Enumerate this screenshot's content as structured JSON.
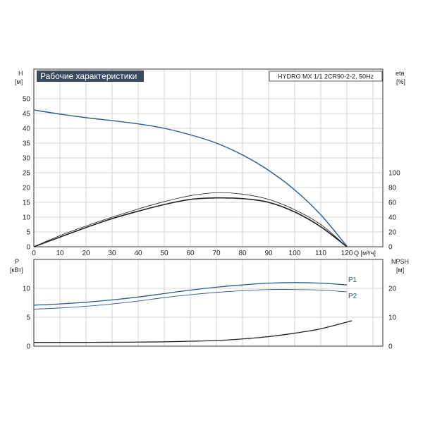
{
  "colors": {
    "grid": "#c8c8c8",
    "axis": "#333333",
    "head": "#2a5a8c",
    "curve": "#222222",
    "title_bg": "#3a4a5c",
    "title_fg": "#ffffff"
  },
  "chart_data": [
    {
      "type": "line",
      "title": "Рабочие характеристики",
      "subtitle": "HYDRO MX 1/1 2CR90-2-2, 50Hz",
      "xlabel": "Q [м³/ч]",
      "ylabel_left": "H",
      "ylabel_left_unit": "[м]",
      "ylabel_right": "eta",
      "ylabel_right_unit": "[%]",
      "xlim": [
        0,
        120
      ],
      "ylim": [
        0,
        50
      ],
      "y2lim": [
        0,
        100
      ],
      "grid": true,
      "x_ticks": [
        0,
        10,
        20,
        30,
        40,
        50,
        60,
        70,
        80,
        90,
        100,
        110,
        120
      ],
      "y_ticks": [
        0,
        5,
        10,
        15,
        20,
        25,
        30,
        35,
        40,
        45,
        50
      ],
      "y2_ticks": [
        0,
        20,
        40,
        60,
        80,
        100
      ],
      "series": [
        {
          "role": "head",
          "axis": "left",
          "x": [
            0,
            10,
            20,
            30,
            40,
            50,
            60,
            70,
            80,
            90,
            100,
            110,
            120
          ],
          "y": [
            46.2,
            44.8,
            43.6,
            42.6,
            41.5,
            40.0,
            37.8,
            35.0,
            31.0,
            25.8,
            19.2,
            10.8,
            0.2
          ]
        },
        {
          "role": "eta_1",
          "axis": "right",
          "x": [
            0,
            10,
            20,
            30,
            40,
            50,
            60,
            70,
            80,
            90,
            100,
            110,
            120
          ],
          "y": [
            0,
            15,
            28,
            40,
            51,
            61,
            69,
            73,
            71,
            64,
            50,
            30,
            0
          ]
        },
        {
          "role": "eta_2",
          "axis": "right",
          "x": [
            0,
            10,
            20,
            30,
            40,
            50,
            60,
            70,
            80,
            90,
            100,
            110,
            120
          ],
          "y": [
            0,
            13,
            26,
            38,
            48,
            57,
            64,
            66,
            65,
            60,
            47,
            27,
            0
          ]
        }
      ]
    },
    {
      "type": "line",
      "xlabel": "",
      "ylabel_left": "P",
      "ylabel_left_unit": "[кВт]",
      "ylabel_right": "NPSH",
      "ylabel_right_unit": "[м]",
      "xlim": [
        0,
        120
      ],
      "ylim": [
        0,
        15
      ],
      "y2lim": [
        0,
        30
      ],
      "grid": true,
      "y_ticks": [
        0,
        5,
        10
      ],
      "y2_ticks": [
        0,
        10,
        20
      ],
      "series": [
        {
          "name": "P1",
          "axis": "left",
          "x": [
            0,
            10,
            20,
            30,
            40,
            50,
            60,
            70,
            80,
            90,
            100,
            110,
            120
          ],
          "y": [
            7.1,
            7.3,
            7.6,
            8.0,
            8.5,
            9.1,
            9.7,
            10.2,
            10.6,
            10.9,
            11.0,
            10.9,
            10.6
          ]
        },
        {
          "name": "P2",
          "axis": "left",
          "x": [
            0,
            10,
            20,
            30,
            40,
            50,
            60,
            70,
            80,
            90,
            100,
            110,
            120
          ],
          "y": [
            6.4,
            6.6,
            6.9,
            7.3,
            7.8,
            8.4,
            8.9,
            9.3,
            9.6,
            9.8,
            9.8,
            9.7,
            9.4
          ]
        },
        {
          "role": "npsh",
          "axis": "right",
          "x": [
            0,
            10,
            20,
            30,
            40,
            50,
            60,
            70,
            80,
            90,
            100,
            110,
            122
          ],
          "y": [
            1.3,
            1.3,
            1.3,
            1.35,
            1.4,
            1.5,
            1.7,
            1.95,
            2.5,
            3.3,
            4.5,
            6.0,
            8.8
          ]
        }
      ]
    }
  ]
}
